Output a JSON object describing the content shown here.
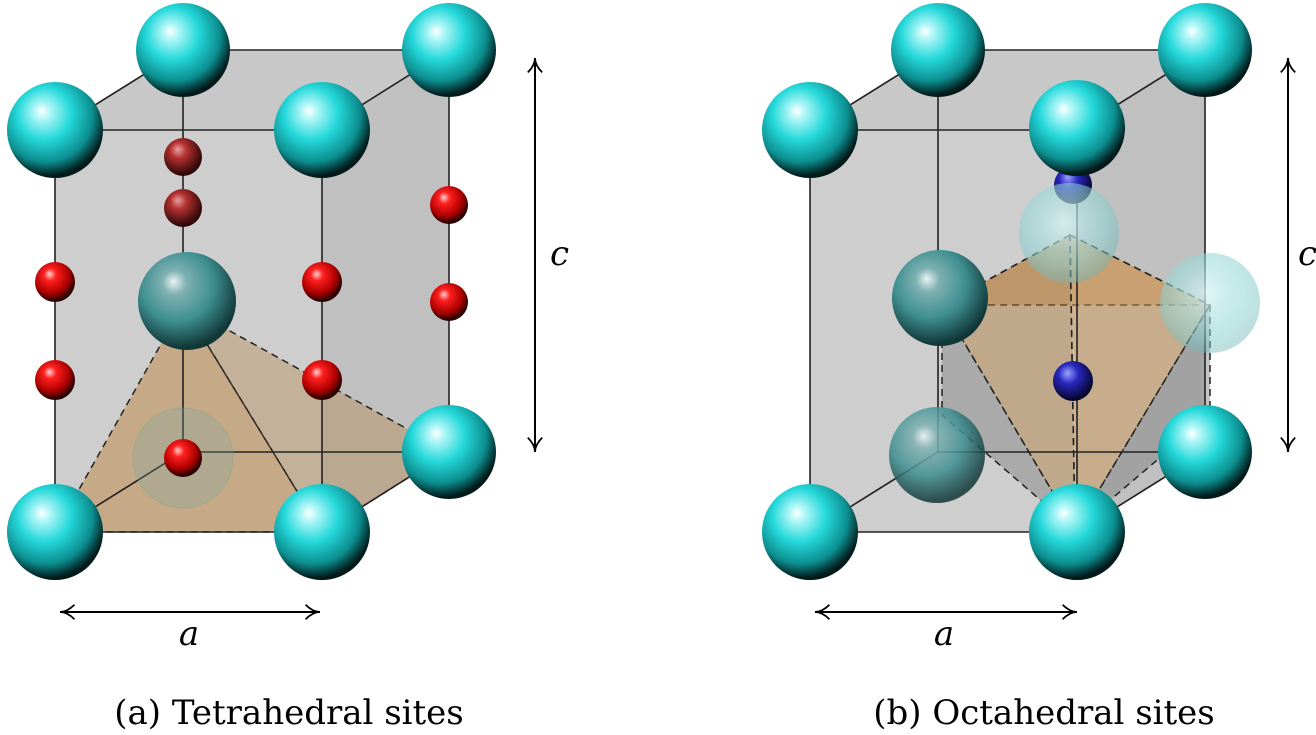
{
  "panels": [
    {
      "caption": "(a) Tetrahedral sites",
      "a_label": "a",
      "c_label": "c"
    },
    {
      "caption": "(b) Octahedral sites",
      "a_label": "a",
      "c_label": "c"
    }
  ],
  "colors": {
    "large_atom": "#21d4d6",
    "tetrahedral_site": "#e00000",
    "octahedral_site": "#2a2ac8",
    "cell_fill": "#a6a6a6",
    "polyhedron_fill": "#c08a4a"
  }
}
